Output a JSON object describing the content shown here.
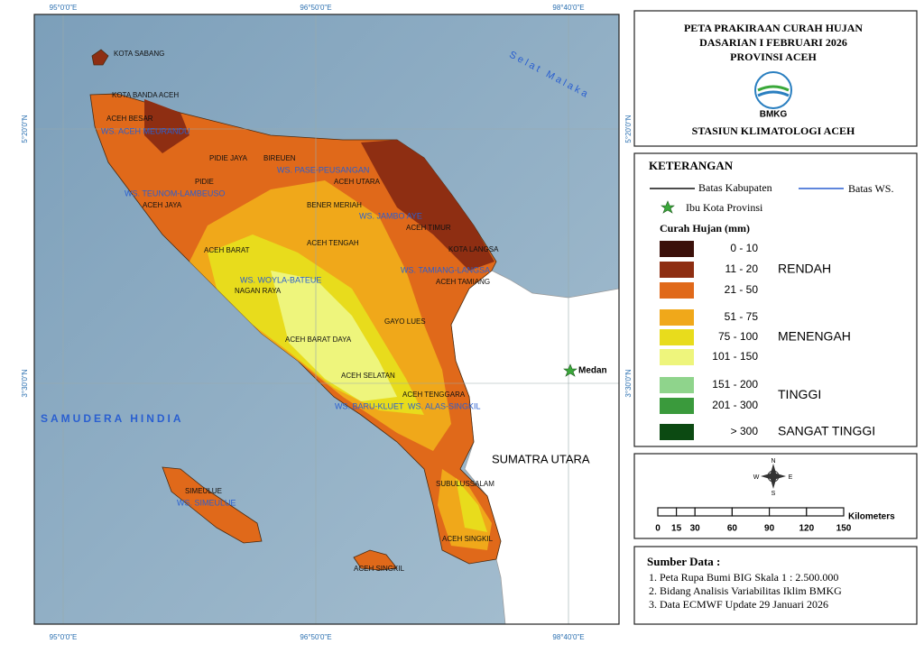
{
  "map": {
    "coord_top": [
      "95°0'0\"E",
      "96°50'0\"E",
      "98°40'0\"E"
    ],
    "coord_bottom": [
      "95°0'0\"E",
      "96°50'0\"E",
      "98°40'0\"E"
    ],
    "coord_left": [
      "5°20'0\"N",
      "3°30'0\"N"
    ],
    "coord_right": [
      "5°20'0\"N",
      "3°30'0\"N"
    ],
    "sea_labels": [
      "Selat Malaka",
      "SAMUDERA HINDIA"
    ],
    "regions": [
      "KOTA SABANG",
      "KOTA BANDA ACEH",
      "ACEH BESAR",
      "PIDIE JAYA",
      "BIREUEN",
      "PIDIE",
      "ACEH UTARA",
      "ACEH JAYA",
      "BENER MERIAH",
      "ACEH TIMUR",
      "ACEH BARAT",
      "ACEH TENGAH",
      "KOTA LANGSA",
      "ACEH TAMIANG",
      "NAGAN RAYA",
      "GAYO LUES",
      "ACEH BARAT DAYA",
      "ACEH SELATAN",
      "ACEH TENGGARA",
      "SIMEULUE",
      "SUBULUSSALAM",
      "ACEH SINGKIL",
      "ACEH SINGKIL"
    ],
    "watersheds": [
      "WS. ACEH MEURANDU",
      "WS. PASE-PEUSANGAN",
      "WS. TEUNOM-LAMBEUSO",
      "WS. JAMBO AYE",
      "WS. TAMIANG-LANGSA",
      "WS. WOYLA-BATEUE",
      "WS. BARU-KLUET",
      "WS. ALAS-SINGKIL",
      "WS. SIMEULUE"
    ],
    "capital": "Medan",
    "province": "SUMATRA UTARA"
  },
  "header": {
    "title": [
      "PETA PRAKIRAAN CURAH HUJAN",
      "DASARIAN I FEBRUARI 2026",
      "PROVINSI ACEH"
    ],
    "logo": "BMKG",
    "station": "STASIUN KLIMATOLOGI ACEH"
  },
  "legend": {
    "title": "KETERANGAN",
    "boundary": "Batas Kabupaten",
    "watershed": "Batas WS.",
    "capital": "Ibu Kota Provinsi",
    "rain_title": "Curah Hujan (mm)",
    "groups": [
      {
        "name": "RENDAH",
        "classes": [
          {
            "label": "0 - 10",
            "color": "#3b100a"
          },
          {
            "label": "11 - 20",
            "color": "#8e2e12"
          },
          {
            "label": "21 - 50",
            "color": "#e0691a"
          }
        ]
      },
      {
        "name": "MENENGAH",
        "classes": [
          {
            "label": "51 - 75",
            "color": "#f0a81a"
          },
          {
            "label": "75 - 100",
            "color": "#e8dc1c"
          },
          {
            "label": "101 - 150",
            "color": "#eef57c"
          }
        ]
      },
      {
        "name": "TINGGI",
        "classes": [
          {
            "label": "151 - 200",
            "color": "#8fd48c"
          },
          {
            "label": "201 - 300",
            "color": "#3a9a3c"
          }
        ]
      },
      {
        "name": "SANGAT TINGGI",
        "classes": [
          {
            "label": "> 300",
            "color": "#0c4a12"
          }
        ]
      }
    ]
  },
  "compass": [
    "N",
    "E",
    "S",
    "W"
  ],
  "scale": {
    "ticks": [
      0,
      15,
      30,
      60,
      90,
      120,
      150
    ],
    "unit": "Kilometers"
  },
  "sources": {
    "title": "Sumber Data :",
    "items": [
      "1. Peta Rupa Bumi BIG Skala 1 : 2.500.000",
      "2. Bidang Analisis Variabilitas Iklim BMKG",
      "3. Data ECMWF Update 29 Januari 2026"
    ]
  }
}
